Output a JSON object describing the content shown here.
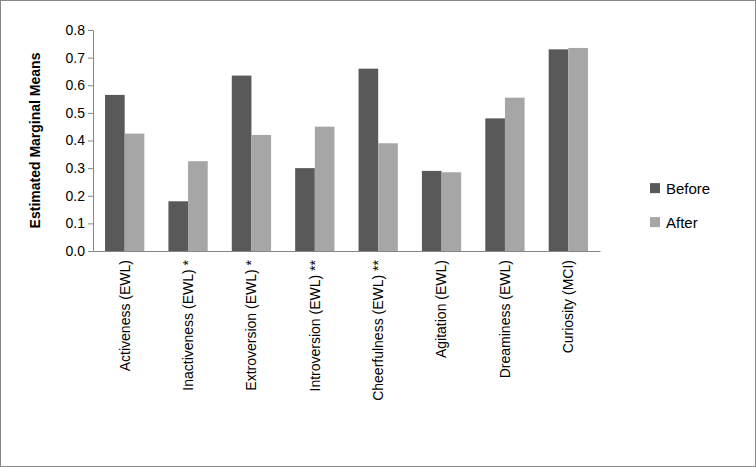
{
  "chart_data": {
    "type": "bar",
    "y_label": "Estimated Marginal Means",
    "categories": [
      "Activeness (EWL)",
      "Inactiveness (EWL) *",
      "Extroversion (EWL) *",
      "Introversion (EWL) **",
      "Cheerfulness (EWL) **",
      "Agitation (EWL)",
      "Dreaminess (EWL)",
      "Curiosity (MCI)"
    ],
    "series": [
      {
        "name": "Before",
        "color": "#595959",
        "values": [
          0.565,
          0.18,
          0.635,
          0.3,
          0.66,
          0.29,
          0.48,
          0.73
        ]
      },
      {
        "name": "After",
        "color": "#a6a6a6",
        "values": [
          0.425,
          0.325,
          0.42,
          0.45,
          0.39,
          0.285,
          0.555,
          0.735
        ]
      }
    ],
    "ylim": [
      0,
      0.8
    ],
    "yticks": [
      {
        "value": 0,
        "label": "0.0"
      },
      0.1,
      0.2,
      0.3,
      0.4,
      0.5,
      0.6,
      0.7,
      0.8
    ],
    "grid": false,
    "legend": "right"
  }
}
